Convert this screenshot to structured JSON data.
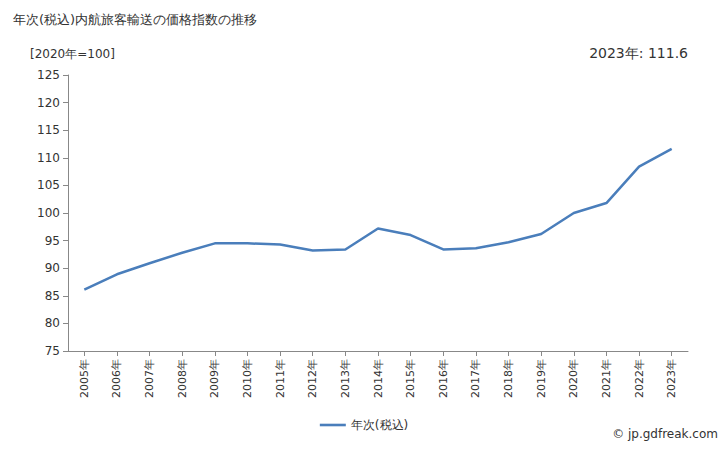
{
  "chart_data": {
    "type": "line",
    "title": "年次(税込)内航旅客輸送の価格指数の推移",
    "y_label": "[2020年=100]",
    "annotation": "2023年: 111.6",
    "note": "© jp.gdfreak.com",
    "categories": [
      "2005年",
      "2006年",
      "2007年",
      "2008年",
      "2009年",
      "2010年",
      "2011年",
      "2012年",
      "2013年",
      "2014年",
      "2015年",
      "2016年",
      "2017年",
      "2018年",
      "2019年",
      "2020年",
      "2021年",
      "2022年",
      "2023年"
    ],
    "series": [
      {
        "name": "年次(税込)",
        "color": "#4a7ebb",
        "values": [
          86.1,
          88.9,
          90.9,
          92.8,
          94.5,
          94.5,
          94.3,
          93.2,
          93.4,
          97.2,
          96.0,
          93.4,
          93.6,
          94.7,
          96.2,
          100.0,
          101.8,
          108.4,
          111.6
        ]
      }
    ],
    "ylim": [
      75,
      125
    ],
    "yticks": [
      75,
      80,
      85,
      90,
      95,
      100,
      105,
      110,
      115,
      120,
      125
    ],
    "grid": false,
    "legend": "bottom"
  }
}
